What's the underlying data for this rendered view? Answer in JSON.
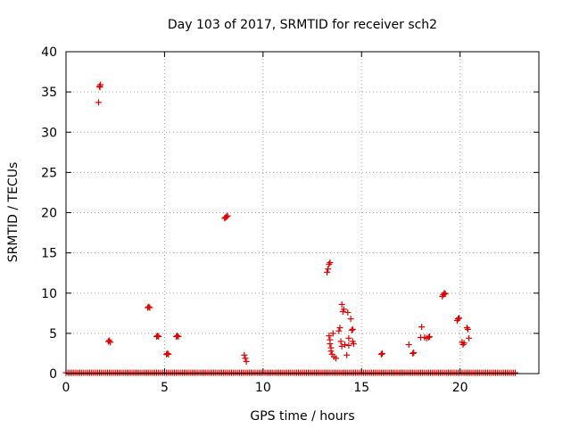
{
  "chart_data": {
    "type": "scatter",
    "title": "Day 103 of 2017, SRMTID for receiver sch2",
    "xlabel": "GPS time / hours",
    "ylabel": "SRMTID / TECUs",
    "xlim": [
      0,
      24
    ],
    "ylim": [
      0,
      40
    ],
    "xticks": [
      0,
      5,
      10,
      15,
      20
    ],
    "xtick_labels": [
      "0",
      "5",
      "10",
      "15",
      "20"
    ],
    "yticks": [
      0,
      5,
      10,
      15,
      20,
      25,
      30,
      35,
      40
    ],
    "ytick_labels": [
      "0",
      "5",
      "10",
      "15",
      "20",
      "25",
      "30",
      "35",
      "40"
    ],
    "grid": true,
    "marker": "+",
    "color": "#e00000",
    "baseline": {
      "value": 0.1,
      "x_start": 0.0,
      "x_end": 22.8,
      "step": 0.1
    },
    "series": [
      {
        "name": "SRMTID",
        "points": [
          [
            1.65,
            33.7
          ],
          [
            1.7,
            35.7
          ],
          [
            1.75,
            35.9
          ],
          [
            1.72,
            35.6
          ],
          [
            2.15,
            4.0
          ],
          [
            2.2,
            4.1
          ],
          [
            2.25,
            3.9
          ],
          [
            4.15,
            8.2
          ],
          [
            4.2,
            8.3
          ],
          [
            4.25,
            8.2
          ],
          [
            4.6,
            4.6
          ],
          [
            4.65,
            4.7
          ],
          [
            4.7,
            4.6
          ],
          [
            5.1,
            2.4
          ],
          [
            5.15,
            2.5
          ],
          [
            5.2,
            2.4
          ],
          [
            5.6,
            4.6
          ],
          [
            5.65,
            4.7
          ],
          [
            5.7,
            4.6
          ],
          [
            8.05,
            19.3
          ],
          [
            8.1,
            19.4
          ],
          [
            8.15,
            19.5
          ],
          [
            8.2,
            19.6
          ],
          [
            9.05,
            2.3
          ],
          [
            9.1,
            1.9
          ],
          [
            9.15,
            1.5
          ],
          [
            13.25,
            12.6
          ],
          [
            13.3,
            13.0
          ],
          [
            13.35,
            13.6
          ],
          [
            13.4,
            13.8
          ],
          [
            13.35,
            4.7
          ],
          [
            13.4,
            4.2
          ],
          [
            13.4,
            3.7
          ],
          [
            13.45,
            3.2
          ],
          [
            13.45,
            2.8
          ],
          [
            13.5,
            2.4
          ],
          [
            13.55,
            5.0
          ],
          [
            13.6,
            2.1
          ],
          [
            13.7,
            1.9
          ],
          [
            13.85,
            5.3
          ],
          [
            13.9,
            5.7
          ],
          [
            13.95,
            4.0
          ],
          [
            14.0,
            3.4
          ],
          [
            14.0,
            8.6
          ],
          [
            14.05,
            7.7
          ],
          [
            14.1,
            8.0
          ],
          [
            14.15,
            3.6
          ],
          [
            14.25,
            2.3
          ],
          [
            14.3,
            7.6
          ],
          [
            14.35,
            4.4
          ],
          [
            14.35,
            3.5
          ],
          [
            14.45,
            6.8
          ],
          [
            14.5,
            5.4
          ],
          [
            14.55,
            5.5
          ],
          [
            14.6,
            3.7
          ],
          [
            14.55,
            4.0
          ],
          [
            16.0,
            2.4
          ],
          [
            16.05,
            2.5
          ],
          [
            17.4,
            3.6
          ],
          [
            17.6,
            2.5
          ],
          [
            17.65,
            2.6
          ],
          [
            18.0,
            4.5
          ],
          [
            18.05,
            5.8
          ],
          [
            18.2,
            4.5
          ],
          [
            18.3,
            4.4
          ],
          [
            18.4,
            4.5
          ],
          [
            18.45,
            4.6
          ],
          [
            19.1,
            9.6
          ],
          [
            19.15,
            9.8
          ],
          [
            19.2,
            10.0
          ],
          [
            19.25,
            9.9
          ],
          [
            19.85,
            6.6
          ],
          [
            19.9,
            6.8
          ],
          [
            19.95,
            6.9
          ],
          [
            20.1,
            3.9
          ],
          [
            20.15,
            3.6
          ],
          [
            20.2,
            3.8
          ],
          [
            20.35,
            5.7
          ],
          [
            20.4,
            5.5
          ],
          [
            20.45,
            4.4
          ]
        ]
      }
    ]
  }
}
